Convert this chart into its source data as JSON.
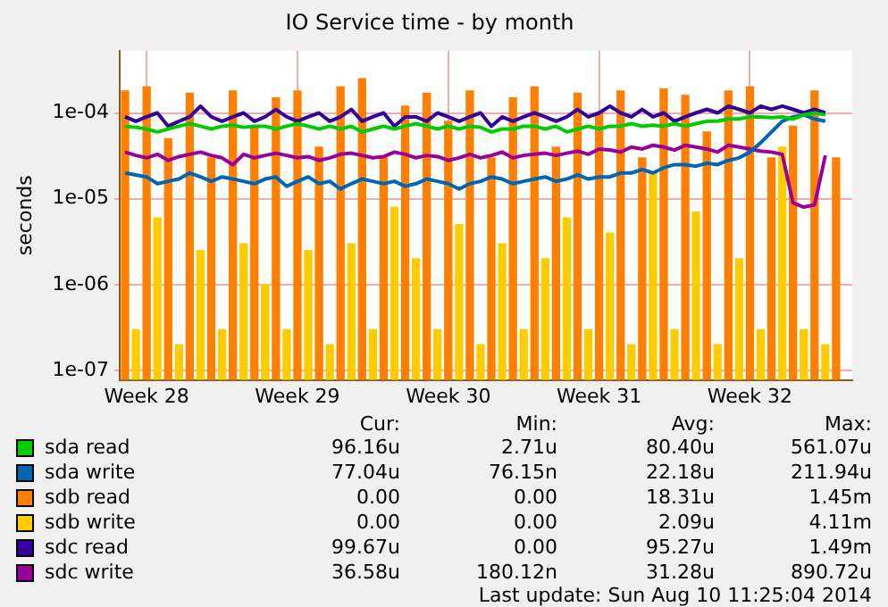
{
  "chart_data": {
    "type": "line",
    "title": "IO Service time - by month",
    "ylabel": "seconds",
    "log": "y",
    "grid": true,
    "legend": "bottom",
    "marker": "none",
    "categories": [
      null,
      null,
      "Week 28",
      null,
      null,
      null,
      null,
      null,
      null,
      null,
      null,
      null,
      null,
      null,
      null,
      null,
      "Week 29",
      null,
      null,
      null,
      null,
      null,
      null,
      null,
      null,
      null,
      null,
      null,
      null,
      null,
      "Week 30",
      null,
      null,
      null,
      null,
      null,
      null,
      null,
      null,
      null,
      null,
      null,
      null,
      null,
      "Week 31",
      null,
      null,
      null,
      null,
      null,
      null,
      null,
      null,
      null,
      null,
      null,
      null,
      null,
      "Week 32",
      null,
      null,
      null,
      null,
      null,
      null,
      null,
      null,
      null
    ],
    "ylim": [
      7.8e-08,
      0.00053
    ],
    "yticks": [
      {
        "value": 1e-07,
        "label": "1e-07"
      },
      {
        "value": 1e-06,
        "label": "1e-06"
      },
      {
        "value": 1e-05,
        "label": "1e-05"
      },
      {
        "value": 0.0001,
        "label": "1e-04"
      }
    ],
    "series": [
      {
        "name": "sda read",
        "color": "#00cc00",
        "values": [
          7e-05,
          6.8e-05,
          6.5e-05,
          6e-05,
          6.5e-05,
          7e-05,
          7.5e-05,
          7e-05,
          6.5e-05,
          7e-05,
          7.2e-05,
          6.8e-05,
          7e-05,
          7e-05,
          6.5e-05,
          7e-05,
          7.5e-05,
          7e-05,
          6.5e-05,
          7e-05,
          6.5e-05,
          7e-05,
          6e-05,
          6.5e-05,
          7e-05,
          6.5e-05,
          7e-05,
          7.5e-05,
          7e-05,
          6.5e-05,
          7e-05,
          6.5e-05,
          7e-05,
          6.8e-05,
          6e-05,
          6.5e-05,
          6.5e-05,
          7e-05,
          7e-05,
          6.5e-05,
          7e-05,
          6e-05,
          6.5e-05,
          7e-05,
          6.5e-05,
          7e-05,
          7e-05,
          7.5e-05,
          7e-05,
          7.2e-05,
          7e-05,
          7.5e-05,
          7e-05,
          7.5e-05,
          8e-05,
          8e-05,
          8.5e-05,
          8.5e-05,
          9e-05,
          9e-05,
          8.8e-05,
          9e-05,
          8.5e-05,
          9.5e-05,
          0.0001,
          9.5e-05,
          null,
          null
        ]
      },
      {
        "name": "sda write",
        "color": "#0066b3",
        "values": [
          2e-05,
          1.9e-05,
          1.8e-05,
          1.5e-05,
          1.6e-05,
          1.7e-05,
          2e-05,
          1.8e-05,
          1.6e-05,
          1.8e-05,
          1.7e-05,
          1.6e-05,
          1.5e-05,
          1.7e-05,
          1.8e-05,
          1.4e-05,
          1.6e-05,
          1.8e-05,
          1.5e-05,
          1.6e-05,
          1.3e-05,
          1.5e-05,
          1.7e-05,
          1.6e-05,
          1.5e-05,
          1.6e-05,
          1.4e-05,
          1.5e-05,
          1.7e-05,
          1.6e-05,
          1.5e-05,
          1.3e-05,
          1.5e-05,
          1.6e-05,
          1.8e-05,
          1.7e-05,
          1.5e-05,
          1.6e-05,
          1.7e-05,
          1.8e-05,
          1.6e-05,
          1.7e-05,
          1.9e-05,
          1.7e-05,
          1.8e-05,
          1.8e-05,
          2e-05,
          2e-05,
          2.2e-05,
          2e-05,
          2.3e-05,
          2.5e-05,
          2.5e-05,
          2.4e-05,
          2.6e-05,
          2.5e-05,
          2.8e-05,
          3e-05,
          3.5e-05,
          4.5e-05,
          6e-05,
          8e-05,
          9e-05,
          9.5e-05,
          8.5e-05,
          8e-05,
          null,
          null
        ]
      },
      {
        "name": "sdb read",
        "type": "bar",
        "color": "#ff8000",
        "values": [
          0.00018,
          null,
          0.0002,
          null,
          5e-05,
          null,
          0.00017,
          null,
          3e-05,
          null,
          0.00018,
          null,
          7e-05,
          null,
          0.00015,
          null,
          0.00018,
          null,
          4e-05,
          null,
          0.0002,
          null,
          0.00025,
          null,
          3e-05,
          null,
          0.00012,
          null,
          0.00017,
          null,
          8e-05,
          null,
          0.00018,
          null,
          3e-05,
          null,
          0.00015,
          null,
          0.0002,
          null,
          4e-05,
          null,
          0.00017,
          null,
          0.0001,
          null,
          0.00018,
          null,
          3e-05,
          null,
          0.00019,
          null,
          0.00016,
          null,
          6e-05,
          null,
          0.00018,
          null,
          0.0002,
          null,
          3e-05,
          null,
          7e-05,
          null,
          0.00018,
          null,
          3e-05,
          null
        ]
      },
      {
        "name": "sdb write",
        "type": "bar",
        "color": "#ffcc00",
        "values": [
          null,
          3e-07,
          null,
          6e-06,
          null,
          2e-07,
          null,
          2.5e-06,
          null,
          3e-07,
          null,
          3e-06,
          null,
          1e-06,
          null,
          3e-07,
          null,
          2.5e-06,
          null,
          2e-07,
          null,
          3e-06,
          null,
          3e-07,
          null,
          8e-06,
          null,
          2e-06,
          null,
          3e-07,
          null,
          5e-06,
          null,
          2e-07,
          null,
          3e-06,
          null,
          3e-07,
          null,
          2e-06,
          null,
          6e-06,
          null,
          3e-07,
          null,
          4e-06,
          null,
          2e-07,
          null,
          2e-05,
          null,
          3e-07,
          null,
          7e-06,
          null,
          2e-07,
          null,
          2e-06,
          null,
          3e-07,
          null,
          4e-05,
          null,
          3e-07,
          null,
          2e-07,
          null,
          null
        ]
      },
      {
        "name": "sdc read",
        "color": "#330099",
        "values": [
          9e-05,
          8e-05,
          9e-05,
          0.0001,
          7e-05,
          8e-05,
          9e-05,
          0.00012,
          9e-05,
          8e-05,
          9e-05,
          0.0001,
          8e-05,
          9e-05,
          0.00011,
          9e-05,
          8e-05,
          9e-05,
          0.0001,
          8e-05,
          9e-05,
          0.00011,
          8e-05,
          9e-05,
          0.0001,
          7e-05,
          9e-05,
          9e-05,
          8e-05,
          0.0001,
          9e-05,
          8e-05,
          9e-05,
          0.0001,
          7e-05,
          9e-05,
          8e-05,
          9e-05,
          0.0001,
          9e-05,
          8e-05,
          9e-05,
          0.00011,
          9e-05,
          0.0001,
          0.00012,
          0.0001,
          9e-05,
          0.00011,
          9e-05,
          0.0001,
          8e-05,
          9e-05,
          0.0001,
          0.00011,
          0.0001,
          0.00012,
          0.00011,
          0.0001,
          0.00012,
          0.00011,
          0.00012,
          0.00011,
          0.0001,
          0.00011,
          0.0001,
          null,
          null
        ]
      },
      {
        "name": "sdc write",
        "color": "#990099",
        "values": [
          3.5e-05,
          3.2e-05,
          3e-05,
          3.3e-05,
          2.8e-05,
          3.1e-05,
          3.3e-05,
          3.5e-05,
          3.2e-05,
          3e-05,
          2.5e-05,
          3.3e-05,
          3e-05,
          3.2e-05,
          3.4e-05,
          3.2e-05,
          3e-05,
          3.1e-05,
          2.8e-05,
          3e-05,
          3.3e-05,
          3.4e-05,
          3.2e-05,
          3e-05,
          3.1e-05,
          3.5e-05,
          3.3e-05,
          3e-05,
          3.2e-05,
          3.1e-05,
          2.8e-05,
          3e-05,
          3.3e-05,
          3e-05,
          3.2e-05,
          3.5e-05,
          3e-05,
          3.2e-05,
          3.3e-05,
          3.4e-05,
          3.2e-05,
          3.4e-05,
          3.6e-05,
          3.3e-05,
          3.8e-05,
          3.7e-05,
          3.5e-05,
          4e-05,
          3.8e-05,
          4.2e-05,
          4e-05,
          3.7e-05,
          4.2e-05,
          4e-05,
          3.8e-05,
          3.5e-05,
          4.2e-05,
          4e-05,
          3.8e-05,
          3.6e-05,
          3.5e-05,
          3.3e-05,
          9e-06,
          8e-06,
          8.5e-06,
          3.2e-05,
          null,
          null
        ]
      }
    ],
    "annotations": [
      "Cur:",
      "Min:",
      "Avg:",
      "Max:",
      "96.16u",
      "2.71u",
      "80.40u",
      "561.07u",
      "77.04u",
      "76.15n",
      "22.18u",
      "211.94u",
      "0.00",
      "0.00",
      "18.31u",
      "1.45m",
      "0.00",
      "0.00",
      "2.09u",
      "4.11m",
      "99.67u",
      "0.00",
      "95.27u",
      "1.49m",
      "36.58u",
      "180.12n",
      "31.28u",
      "890.72u",
      "Last update: Sun Aug 10 11:25:04 2014"
    ]
  }
}
